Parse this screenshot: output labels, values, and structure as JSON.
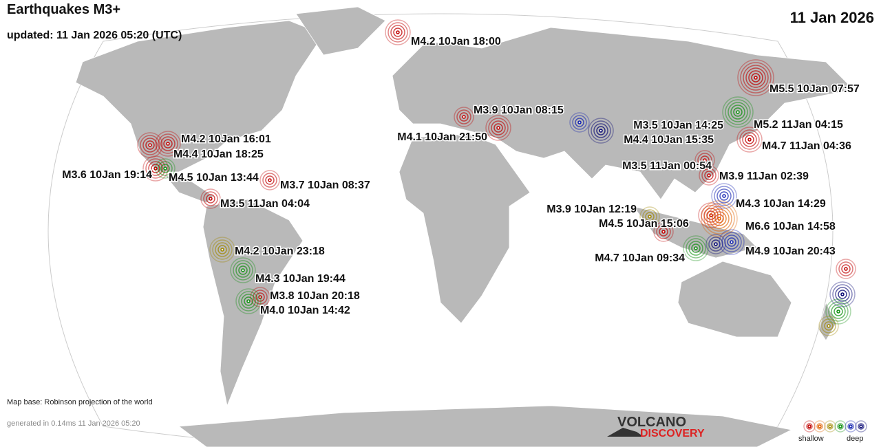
{
  "header": {
    "title": "Earthquakes M3+",
    "updated": "updated: 11 Jan 2026 05:20 (UTC)",
    "date": "11 Jan 2026"
  },
  "quakes": [
    {
      "label": "M4.2 10Jan 18:00"
    },
    {
      "label": "M5.5 10Jan 07:57"
    },
    {
      "label": "M3.9 10Jan 08:15"
    },
    {
      "label": "M4.1 10Jan 21:50"
    },
    {
      "label": "M4.2 10Jan 16:01"
    },
    {
      "label": "M4.4 10Jan 18:25"
    },
    {
      "label": "M3.6 10Jan 19:14"
    },
    {
      "label": "M4.5 10Jan 13:44"
    },
    {
      "label": "M3.7 10Jan 08:37"
    },
    {
      "label": "M3.5 11Jan 04:04"
    },
    {
      "label": "M3.5 10Jan 14:25"
    },
    {
      "label": "M4.4 10Jan 15:35"
    },
    {
      "label": "M5.2 11Jan 04:15"
    },
    {
      "label": "M4.7 11Jan 04:36"
    },
    {
      "label": "M3.5 11Jan 00:54"
    },
    {
      "label": "M3.9 11Jan 02:39"
    },
    {
      "label": "M4.3 10Jan 14:29"
    },
    {
      "label": "M3.9 10Jan 12:19"
    },
    {
      "label": "M4.5 10Jan 15:06"
    },
    {
      "label": "M6.6 10Jan 14:58"
    },
    {
      "label": "M4.9 10Jan 20:43"
    },
    {
      "label": "M4.7 10Jan 09:34"
    },
    {
      "label": "M4.2 10Jan 23:18"
    },
    {
      "label": "M4.3 10Jan 19:44"
    },
    {
      "label": "M3.8 10Jan 20:18"
    },
    {
      "label": "M4.0 10Jan 14:42"
    }
  ],
  "footer": {
    "map_base": "Map base: Robinson projection of the world",
    "generated": "generated in 0.14ms 11 Jan 2026 05:20"
  },
  "logo": {
    "line1": "VOLCANO",
    "line2": "DISCOVERY"
  },
  "legend": {
    "shallow": "shallow",
    "deep": "deep"
  }
}
